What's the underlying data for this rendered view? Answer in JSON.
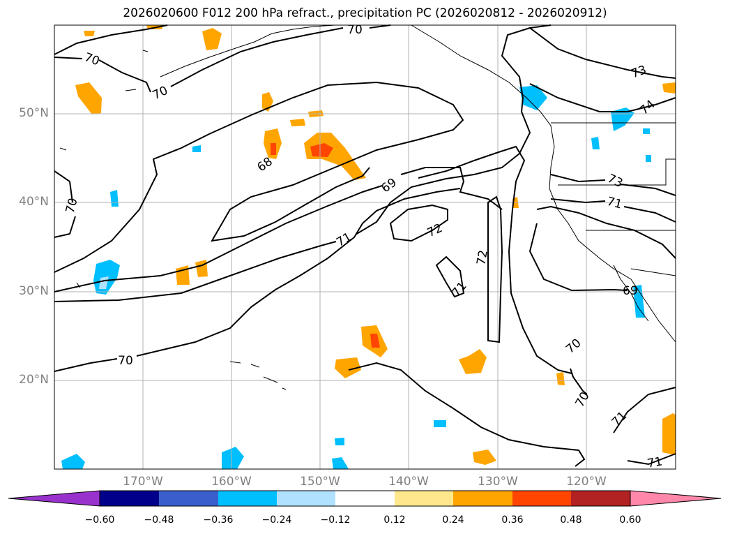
{
  "title": "2026020600 F012 200 hPa refract., precipitation PC (2026020812 - 2026020912)",
  "axes": {
    "lat_labels": [
      "50°N",
      "40°N",
      "30°N",
      "20°N"
    ],
    "lon_labels": [
      "170°W",
      "160°W",
      "150°W",
      "140°W",
      "130°W",
      "120°W"
    ]
  },
  "contour_labels": [
    "70",
    "70",
    "70",
    "68",
    "69",
    "70",
    "71",
    "72",
    "72",
    "71",
    "73",
    "74",
    "73",
    "71",
    "70",
    "69",
    "70",
    "71",
    "71",
    "70"
  ],
  "colorbar": {
    "ticks": [
      "−0.60",
      "−0.48",
      "−0.36",
      "−0.24",
      "−0.12",
      "0.12",
      "0.24",
      "0.36",
      "0.48",
      "0.60"
    ],
    "colors": [
      "#9932cc",
      "#00008b",
      "#3a5fcd",
      "#00bfff",
      "#b0e2ff",
      "#ffffff",
      "#ffe88c",
      "#ffa500",
      "#ff4500",
      "#b22222",
      "#ff88aa"
    ]
  },
  "colors": {
    "grid": "#b0b0b0",
    "contour": "#000000",
    "tick_label": "#808080"
  }
}
